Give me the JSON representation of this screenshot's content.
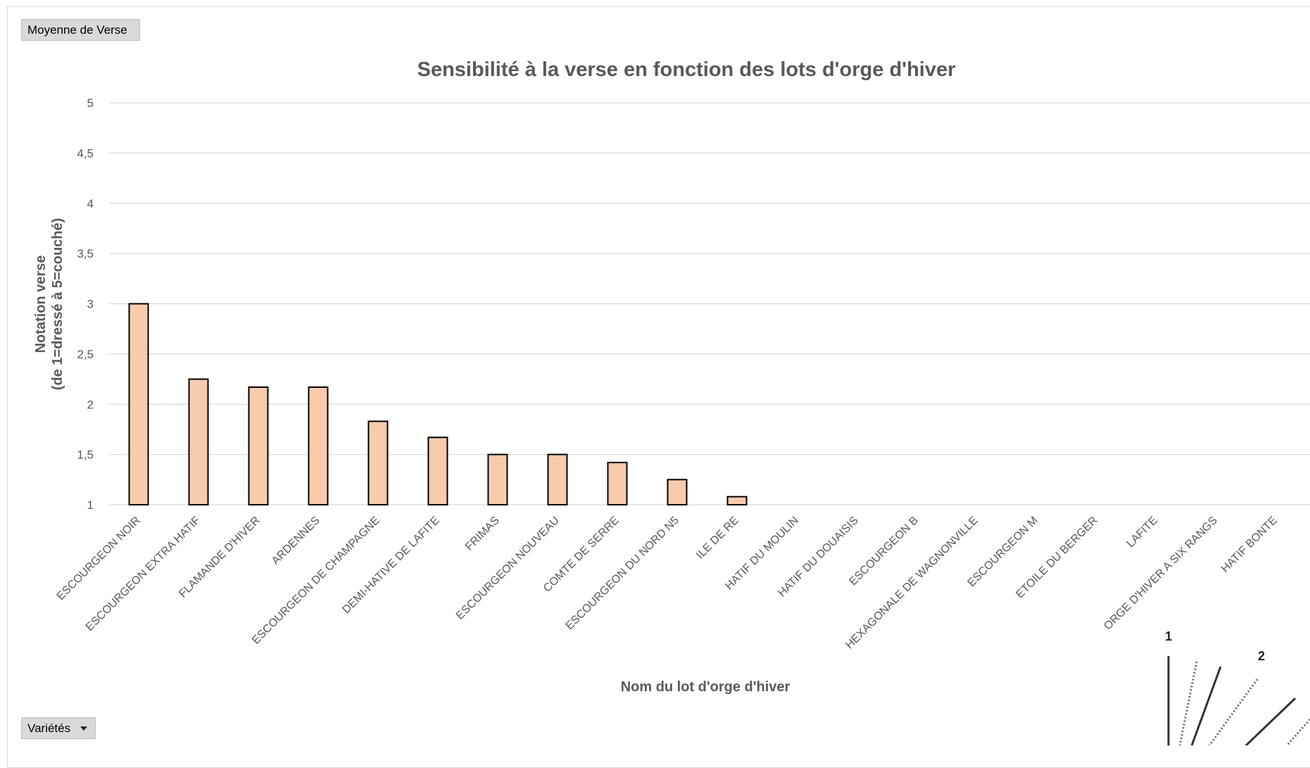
{
  "pivot": {
    "value_field": "Moyenne de Verse",
    "category_field": "Variétés"
  },
  "chart_data": {
    "type": "bar",
    "title": "Sensibilité à la verse en fonction des lots d'orge d'hiver",
    "xlabel": "Nom du lot d'orge d'hiver",
    "ylabel_line1": "Notation verse",
    "ylabel_line2": "(de 1=dressé à 5=couché)",
    "ylim": [
      1,
      5
    ],
    "yticks": [
      "1",
      "1,5",
      "2",
      "2,5",
      "3",
      "3,5",
      "4",
      "4,5",
      "5"
    ],
    "grid": true,
    "bar_color": "#f8cbad",
    "categories": [
      "ESCOURGEON NOIR",
      "ESCOURGEON EXTRA HATIF",
      "FLAMANDE D'HIVER",
      "ARDENNES",
      "ESCOURGEON DE CHAMPAGNE",
      "DEMI-HATIVE DE LAFITE",
      "FRIMAS",
      "ESCOURGEON NOUVEAU",
      "COMTE DE SERRE",
      "ESCOURGEON DU NORD N5",
      "ILE DE RE",
      "HATIF DU MOULIN",
      "HATIF DU DOUAISIS",
      "ESCOURGEON B",
      "HEXAGONALE DE WAGNONVILLE",
      "ESCOURGEON M",
      "ETOILE DU BERGER",
      "LAFITE",
      "ORGE D'HIVER A SIX RANGS",
      "HATIF BONTE"
    ],
    "values": [
      3,
      2.25,
      2.17,
      2.17,
      1.83,
      1.67,
      1.5,
      1.5,
      1.42,
      1.25,
      1.08,
      1,
      1,
      1,
      1,
      1,
      1,
      1,
      1,
      1
    ]
  },
  "decoration": {
    "labels": [
      "1",
      "2"
    ]
  }
}
